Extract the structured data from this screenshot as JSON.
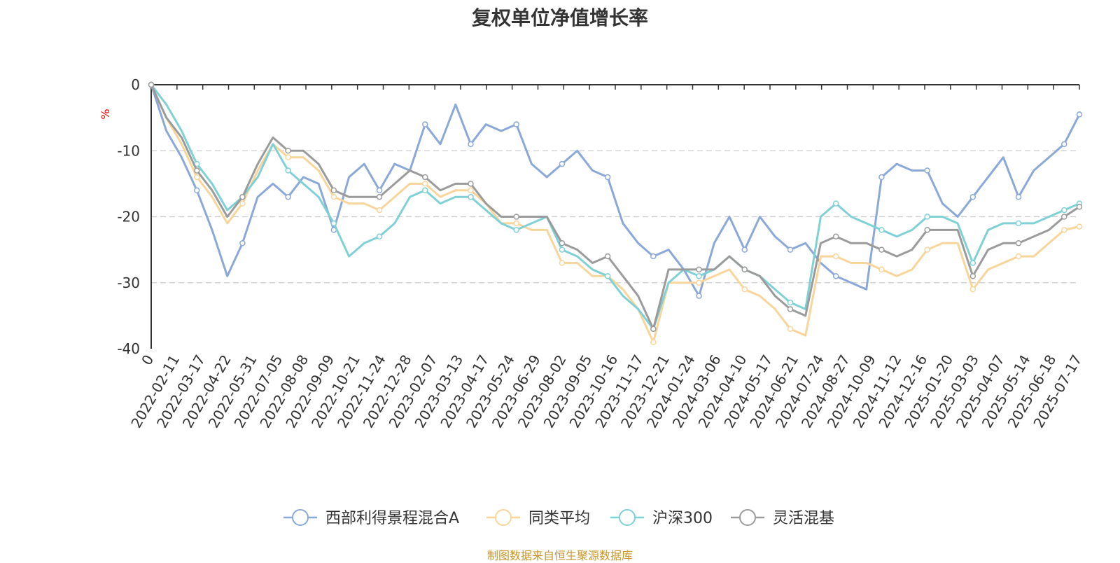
{
  "title": "复权单位净值增长率",
  "source_note": "制图数据来自恒生聚源数据库",
  "chart_data": {
    "type": "line",
    "title": "复权单位净值增长率",
    "ylabel": "%",
    "ylim": [
      -40,
      0
    ],
    "yticks": [
      0,
      -10,
      -20,
      -30,
      -40
    ],
    "grid": "horizontal dashed",
    "legend_position": "bottom",
    "x_label_first": "0",
    "x_labels": [
      "2022-02-11",
      "2022-03-17",
      "2022-04-22",
      "2022-05-31",
      "2022-07-05",
      "2022-08-08",
      "2022-09-09",
      "2022-10-21",
      "2022-11-24",
      "2022-12-28",
      "2023-02-07",
      "2023-03-13",
      "2023-04-17",
      "2023-05-24",
      "2023-06-29",
      "2023-08-02",
      "2023-09-05",
      "2023-10-16",
      "2023-11-17",
      "2023-12-21",
      "2024-01-24",
      "2024-03-06",
      "2024-04-10",
      "2024-05-17",
      "2024-06-21",
      "2024-07-24",
      "2024-08-27",
      "2024-10-09",
      "2024-11-12",
      "2024-12-16",
      "2025-01-20",
      "2025-03-03",
      "2025-04-07",
      "2025-05-14",
      "2025-06-18",
      "2025-07-17"
    ],
    "series": [
      {
        "name": "西部利得景程混合A",
        "color": "#8aa8d8",
        "values": [
          0,
          -7,
          -11,
          -16,
          -22,
          -29,
          -24,
          -17,
          -15,
          -17,
          -14,
          -15,
          -22,
          -14,
          -12,
          -16,
          -12,
          -13,
          -6,
          -9,
          -3,
          -9,
          -6,
          -7,
          -6,
          -12,
          -14,
          -12,
          -10,
          -13,
          -14,
          -21,
          -24,
          -26,
          -25,
          -28,
          -32,
          -24,
          -20,
          -25,
          -20,
          -23,
          -25,
          -24,
          -27,
          -29,
          -30,
          -31,
          -14,
          -12,
          -13,
          -13,
          -18,
          -20,
          -17,
          -14,
          -11,
          -17,
          -13,
          -11,
          -9,
          -4.5
        ]
      },
      {
        "name": "同类平均",
        "color": "#f8d59a",
        "values": [
          0,
          -5,
          -9,
          -14,
          -17,
          -21,
          -18,
          -13,
          -9,
          -11,
          -11,
          -13,
          -17,
          -18,
          -18,
          -19,
          -17,
          -15,
          -15,
          -17,
          -16,
          -16,
          -18,
          -21,
          -21,
          -22,
          -22,
          -27,
          -27,
          -29,
          -29,
          -31,
          -34,
          -39,
          -30,
          -30,
          -30,
          -29,
          -28,
          -31,
          -32,
          -34,
          -37,
          -38,
          -26,
          -26,
          -27,
          -27,
          -28,
          -29,
          -28,
          -25,
          -24,
          -24,
          -31,
          -28,
          -27,
          -26,
          -26,
          -24,
          -22,
          -21.5
        ]
      },
      {
        "name": "沪深300",
        "color": "#7fd1d6",
        "values": [
          0,
          -3,
          -7,
          -12,
          -15,
          -19,
          -17,
          -14,
          -9,
          -13,
          -15,
          -17,
          -21,
          -26,
          -24,
          -23,
          -21,
          -17,
          -16,
          -18,
          -17,
          -17,
          -19,
          -21,
          -22,
          -21,
          -20,
          -25,
          -26,
          -28,
          -29,
          -32,
          -34,
          -37,
          -30,
          -28,
          -29,
          -28,
          -26,
          -28,
          -29,
          -31,
          -33,
          -34,
          -20,
          -18,
          -20,
          -21,
          -22,
          -23,
          -22,
          -20,
          -20,
          -21,
          -27,
          -22,
          -21,
          -21,
          -21,
          -20,
          -19,
          -18
        ]
      },
      {
        "name": "灵活混基",
        "color": "#9b9b9b",
        "values": [
          0,
          -5,
          -8,
          -13,
          -16,
          -20,
          -17,
          -12,
          -8,
          -10,
          -10,
          -12,
          -16,
          -17,
          -17,
          -17,
          -15,
          -13,
          -14,
          -16,
          -15,
          -15,
          -18,
          -20,
          -20,
          -20,
          -20,
          -24,
          -25,
          -27,
          -26,
          -29,
          -32,
          -37,
          -28,
          -28,
          -28,
          -28,
          -26,
          -28,
          -29,
          -32,
          -34,
          -35,
          -24,
          -23,
          -24,
          -24,
          -25,
          -26,
          -25,
          -22,
          -22,
          -22,
          -29,
          -25,
          -24,
          -24,
          -23,
          -22,
          -20,
          -18.5
        ]
      }
    ]
  }
}
